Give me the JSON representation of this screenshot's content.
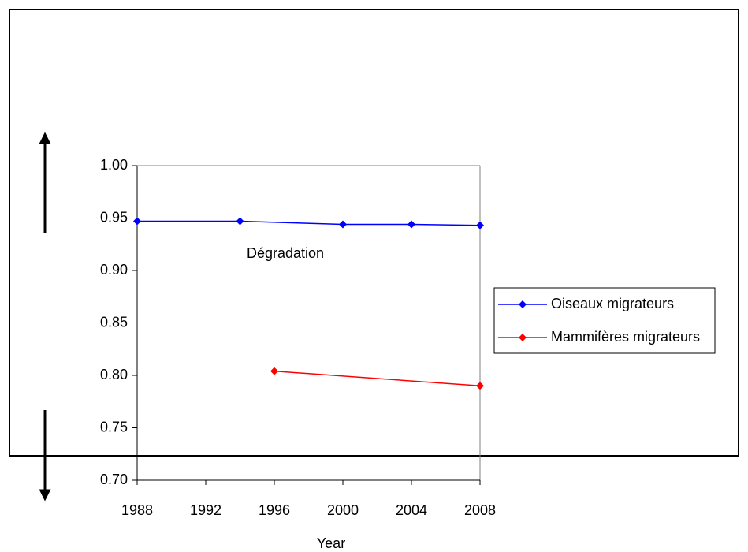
{
  "chart_data": {
    "type": "line",
    "x_label": "Year",
    "annotation": "Dégradation",
    "x": [
      1988,
      1994,
      1996,
      2000,
      2004,
      2008
    ],
    "series": [
      {
        "name": "Oiseaux migrateurs",
        "color": "#0000ff",
        "x": [
          1988,
          1994,
          2000,
          2004,
          2008
        ],
        "values": [
          0.947,
          0.947,
          0.944,
          0.944,
          0.943
        ]
      },
      {
        "name": "Mammifères migrateurs",
        "color": "#ff0000",
        "x": [
          1996,
          2008
        ],
        "values": [
          0.804,
          0.79
        ]
      }
    ],
    "xlim": [
      1988,
      2008
    ],
    "xticks": [
      1988,
      1992,
      1996,
      2000,
      2004,
      2008
    ],
    "ylim": [
      0.7,
      1.0
    ],
    "yticks": [
      {
        "value": 0.7,
        "label": "0.70"
      },
      {
        "value": 0.75,
        "label": "0.75"
      },
      {
        "value": 0.8,
        "label": "0.80"
      },
      {
        "value": 0.85,
        "label": "0.85"
      },
      {
        "value": 0.9,
        "label": "0.90"
      },
      {
        "value": 0.95,
        "label": "0.95"
      },
      {
        "value": 1.0,
        "label": "1.00"
      }
    ],
    "legend": "right"
  }
}
